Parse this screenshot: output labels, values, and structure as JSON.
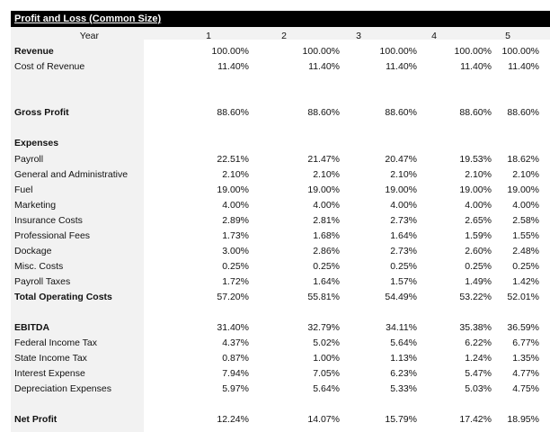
{
  "title": "Profit and Loss (Common Size)",
  "year_label": "Year",
  "years": [
    "1",
    "2",
    "3",
    "4",
    "5"
  ],
  "rows": [
    {
      "label": "Revenue",
      "bold": true,
      "values": [
        "100.00%",
        "100.00%",
        "100.00%",
        "100.00%",
        "100.00%"
      ]
    },
    {
      "label": "Cost of Revenue",
      "bold": false,
      "values": [
        "11.40%",
        "11.40%",
        "11.40%",
        "11.40%",
        "11.40%"
      ]
    },
    {
      "label": "Gross Profit",
      "bold": true,
      "values": [
        "88.60%",
        "88.60%",
        "88.60%",
        "88.60%",
        "88.60%"
      ]
    },
    {
      "label": "Expenses",
      "bold": true,
      "values": []
    },
    {
      "label": "Payroll",
      "bold": false,
      "values": [
        "22.51%",
        "21.47%",
        "20.47%",
        "19.53%",
        "18.62%"
      ]
    },
    {
      "label": "General and Administrative",
      "bold": false,
      "values": [
        "2.10%",
        "2.10%",
        "2.10%",
        "2.10%",
        "2.10%"
      ]
    },
    {
      "label": "Fuel",
      "bold": false,
      "values": [
        "19.00%",
        "19.00%",
        "19.00%",
        "19.00%",
        "19.00%"
      ]
    },
    {
      "label": "Marketing",
      "bold": false,
      "values": [
        "4.00%",
        "4.00%",
        "4.00%",
        "4.00%",
        "4.00%"
      ]
    },
    {
      "label": "Insurance Costs",
      "bold": false,
      "values": [
        "2.89%",
        "2.81%",
        "2.73%",
        "2.65%",
        "2.58%"
      ]
    },
    {
      "label": "Professional Fees",
      "bold": false,
      "values": [
        "1.73%",
        "1.68%",
        "1.64%",
        "1.59%",
        "1.55%"
      ]
    },
    {
      "label": "Dockage",
      "bold": false,
      "values": [
        "3.00%",
        "2.86%",
        "2.73%",
        "2.60%",
        "2.48%"
      ]
    },
    {
      "label": "Misc. Costs",
      "bold": false,
      "values": [
        "0.25%",
        "0.25%",
        "0.25%",
        "0.25%",
        "0.25%"
      ]
    },
    {
      "label": "Payroll Taxes",
      "bold": false,
      "values": [
        "1.72%",
        "1.64%",
        "1.57%",
        "1.49%",
        "1.42%"
      ]
    },
    {
      "label": "Total Operating Costs",
      "bold": true,
      "values": [
        "57.20%",
        "55.81%",
        "54.49%",
        "53.22%",
        "52.01%"
      ]
    },
    {
      "label": "EBITDA",
      "bold": true,
      "values": [
        "31.40%",
        "32.79%",
        "34.11%",
        "35.38%",
        "36.59%"
      ]
    },
    {
      "label": "Federal Income Tax",
      "bold": false,
      "values": [
        "4.37%",
        "5.02%",
        "5.64%",
        "6.22%",
        "6.77%"
      ]
    },
    {
      "label": "State Income Tax",
      "bold": false,
      "values": [
        "0.87%",
        "1.00%",
        "1.13%",
        "1.24%",
        "1.35%"
      ]
    },
    {
      "label": "Interest Expense",
      "bold": false,
      "values": [
        "7.94%",
        "7.05%",
        "6.23%",
        "5.47%",
        "4.77%"
      ]
    },
    {
      "label": "Depreciation Expenses",
      "bold": false,
      "values": [
        "5.97%",
        "5.64%",
        "5.33%",
        "5.03%",
        "4.75%"
      ]
    },
    {
      "label": "Net Profit",
      "bold": true,
      "values": [
        "12.24%",
        "14.07%",
        "15.79%",
        "17.42%",
        "18.95%"
      ]
    }
  ]
}
